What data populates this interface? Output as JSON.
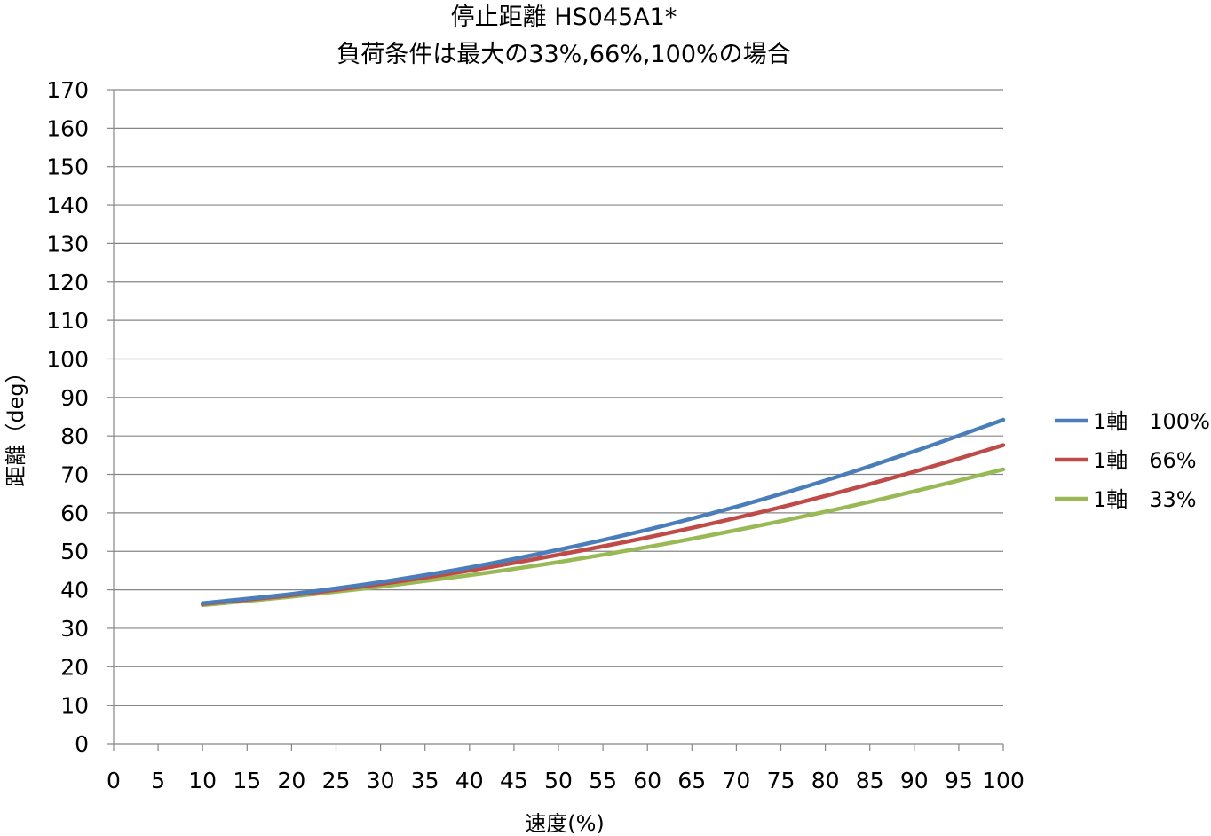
{
  "chart_data": {
    "type": "line",
    "title_lines": [
      "停止距離 HS045A1*",
      "負荷条件は最大の33%,66%,100%の場合"
    ],
    "xlabel": "速度(%)",
    "ylabel": "距離（deg）",
    "xlim": [
      0,
      100
    ],
    "ylim": [
      0,
      170
    ],
    "x_ticks": [
      0,
      5,
      10,
      15,
      20,
      25,
      30,
      35,
      40,
      45,
      50,
      55,
      60,
      65,
      70,
      75,
      80,
      85,
      90,
      95,
      100
    ],
    "y_ticks": [
      0,
      10,
      20,
      30,
      40,
      50,
      60,
      70,
      80,
      90,
      100,
      110,
      120,
      130,
      140,
      150,
      160,
      170
    ],
    "grid": "horizontal",
    "legend_position": "right",
    "x": [
      10,
      20,
      30,
      40,
      50,
      60,
      70,
      80,
      90,
      100
    ],
    "series": [
      {
        "name": "1軸　100%",
        "color": "#4a7ebb",
        "values": [
          36.5,
          38.9,
          42,
          45.8,
          50.4,
          55.6,
          61.6,
          68.4,
          76,
          84.2
        ]
      },
      {
        "name": "1軸　66%",
        "color": "#be4b48",
        "values": [
          36.3,
          38.6,
          41.5,
          45,
          49.1,
          53.6,
          58.7,
          64.4,
          70.7,
          77.6
        ]
      },
      {
        "name": "1軸　33%",
        "color": "#98b954",
        "values": [
          36,
          38.2,
          40.8,
          43.8,
          47.2,
          51.1,
          55.5,
          60.3,
          65.6,
          71.3
        ]
      }
    ]
  }
}
